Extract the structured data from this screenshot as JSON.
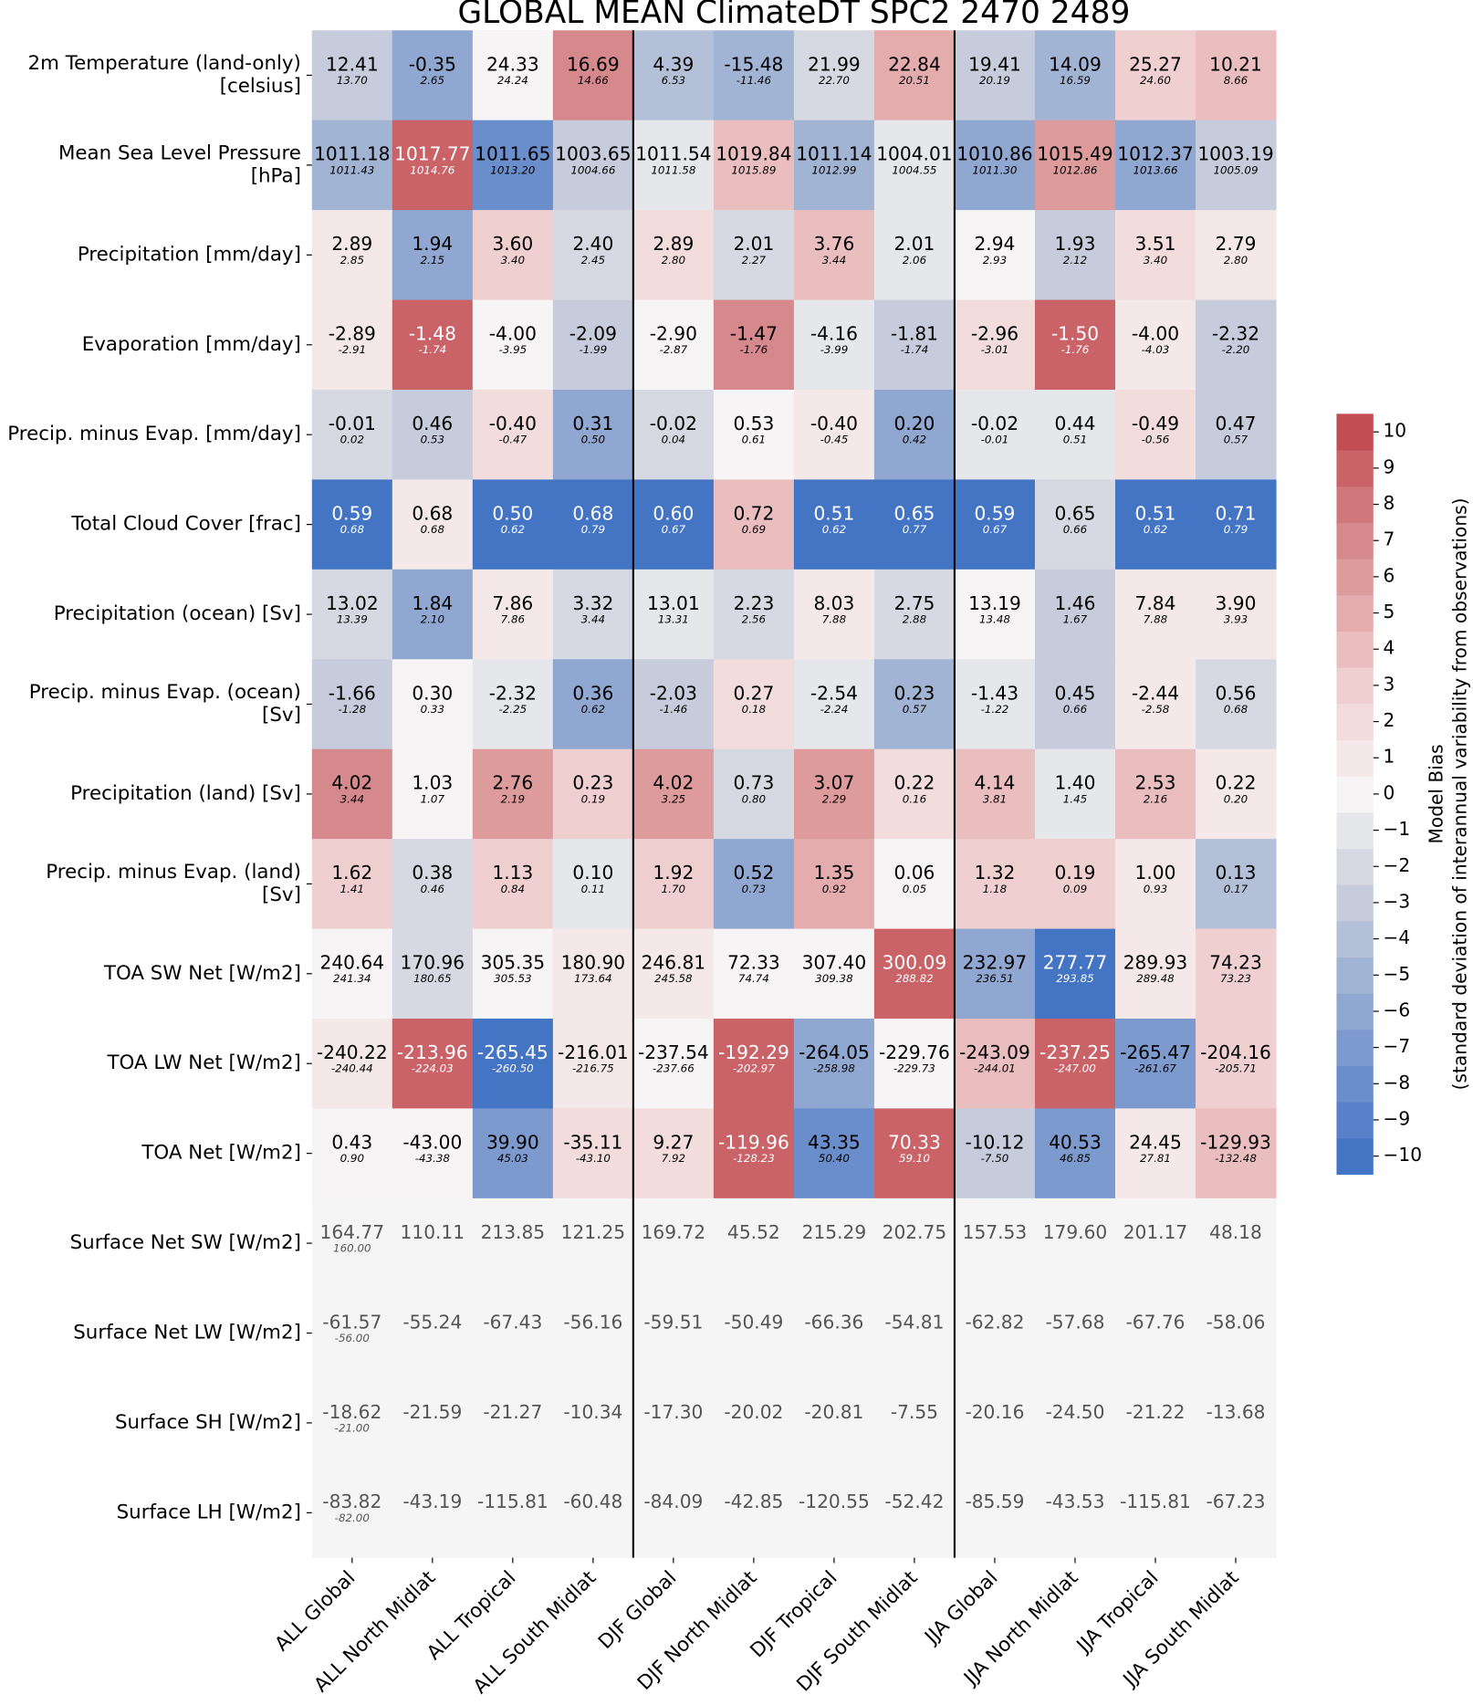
{
  "chart_data": {
    "type": "heatmap",
    "title": "GLOBAL MEAN ClimateDT SPC2 2470 2489",
    "rows": [
      [
        "2m Temperature (land-only)",
        "[celsius]"
      ],
      [
        "Mean Sea Level Pressure",
        "[hPa]"
      ],
      [
        "Precipitation [mm/day]"
      ],
      [
        "Evaporation [mm/day]"
      ],
      [
        "Precip. minus Evap. [mm/day]"
      ],
      [
        "Total Cloud Cover [frac]"
      ],
      [
        "Precipitation (ocean) [Sv]"
      ],
      [
        "Precip. minus Evap. (ocean)",
        "[Sv]"
      ],
      [
        "Precipitation (land) [Sv]"
      ],
      [
        "Precip. minus Evap. (land)",
        "[Sv]"
      ],
      [
        "TOA SW Net [W/m2]"
      ],
      [
        "TOA LW Net [W/m2]"
      ],
      [
        "TOA Net [W/m2]"
      ],
      [
        "Surface Net SW [W/m2]"
      ],
      [
        "Surface Net LW [W/m2]"
      ],
      [
        "Surface SH [W/m2]"
      ],
      [
        "Surface LH [W/m2]"
      ]
    ],
    "columns": [
      "ALL Global",
      "ALL North Midlat",
      "ALL Tropical",
      "ALL South Midlat",
      "DJF Global",
      "DJF North Midlat",
      "DJF Tropical",
      "DJF South Midlat",
      "JJA Global",
      "JJA North Midlat",
      "JJA Tropical",
      "JJA South Midlat"
    ],
    "values": [
      [
        -3,
        -6,
        0,
        7,
        -4,
        -5,
        -2,
        5,
        -3,
        -5,
        3,
        4
      ],
      [
        -5,
        9,
        -8,
        -3,
        -1,
        4,
        -5,
        -1,
        -6,
        6,
        -6,
        -3
      ],
      [
        1,
        -6,
        3,
        -2,
        2,
        -2,
        4,
        -1,
        0,
        -3,
        2,
        1
      ],
      [
        1,
        9,
        0,
        -3,
        0,
        7,
        -1,
        -3,
        2,
        9,
        1,
        -3
      ],
      [
        -2,
        -3,
        2,
        -6,
        -2,
        0,
        1,
        -6,
        -1,
        -1,
        2,
        -3
      ],
      [
        -10,
        1,
        -10,
        -10,
        -10,
        4,
        -10,
        -10,
        -10,
        -2,
        -10,
        -10
      ],
      [
        -2,
        -6,
        1,
        -2,
        -1,
        -2,
        1,
        -2,
        0,
        -3,
        1,
        1
      ],
      [
        -3,
        0,
        -1,
        -6,
        -3,
        2,
        -1,
        -5,
        -1,
        -3,
        1,
        -2
      ],
      [
        7,
        0,
        6,
        3,
        6,
        -2,
        6,
        2,
        4,
        -1,
        4,
        1
      ],
      [
        3,
        -2,
        3,
        -1,
        3,
        -6,
        5,
        0,
        3,
        3,
        1,
        -4
      ],
      [
        0,
        -2,
        0,
        1,
        1,
        0,
        0,
        9,
        -6,
        -10,
        1,
        3
      ],
      [
        1,
        9,
        -10,
        1,
        0,
        9,
        -6,
        0,
        4,
        9,
        -7,
        3
      ],
      [
        0,
        0,
        -7,
        2,
        2,
        9,
        -8,
        9,
        -3,
        -7,
        1,
        4
      ],
      [
        null,
        null,
        null,
        null,
        null,
        null,
        null,
        null,
        null,
        null,
        null,
        null
      ],
      [
        null,
        null,
        null,
        null,
        null,
        null,
        null,
        null,
        null,
        null,
        null,
        null
      ],
      [
        null,
        null,
        null,
        null,
        null,
        null,
        null,
        null,
        null,
        null,
        null,
        null
      ],
      [
        null,
        null,
        null,
        null,
        null,
        null,
        null,
        null,
        null,
        null,
        null,
        null
      ]
    ],
    "cell_text": [
      [
        "12.41",
        "-0.35",
        "24.33",
        "16.69",
        "4.39",
        "-15.48",
        "21.99",
        "22.84",
        "19.41",
        "14.09",
        "25.27",
        "10.21"
      ],
      [
        "1011.18",
        "1017.77",
        "1011.65",
        "1003.65",
        "1011.54",
        "1019.84",
        "1011.14",
        "1004.01",
        "1010.86",
        "1015.49",
        "1012.37",
        "1003.19"
      ],
      [
        "2.89",
        "1.94",
        "3.60",
        "2.40",
        "2.89",
        "2.01",
        "3.76",
        "2.01",
        "2.94",
        "1.93",
        "3.51",
        "2.79"
      ],
      [
        "-2.89",
        "-1.48",
        "-4.00",
        "-2.09",
        "-2.90",
        "-1.47",
        "-4.16",
        "-1.81",
        "-2.96",
        "-1.50",
        "-4.00",
        "-2.32"
      ],
      [
        "-0.01",
        "0.46",
        "-0.40",
        "0.31",
        "-0.02",
        "0.53",
        "-0.40",
        "0.20",
        "-0.02",
        "0.44",
        "-0.49",
        "0.47"
      ],
      [
        "0.59",
        "0.68",
        "0.50",
        "0.68",
        "0.60",
        "0.72",
        "0.51",
        "0.65",
        "0.59",
        "0.65",
        "0.51",
        "0.71"
      ],
      [
        "13.02",
        "1.84",
        "7.86",
        "3.32",
        "13.01",
        "2.23",
        "8.03",
        "2.75",
        "13.19",
        "1.46",
        "7.84",
        "3.90"
      ],
      [
        "-1.66",
        "0.30",
        "-2.32",
        "0.36",
        "-2.03",
        "0.27",
        "-2.54",
        "0.23",
        "-1.43",
        "0.45",
        "-2.44",
        "0.56"
      ],
      [
        "4.02",
        "1.03",
        "2.76",
        "0.23",
        "4.02",
        "0.73",
        "3.07",
        "0.22",
        "4.14",
        "1.40",
        "2.53",
        "0.22"
      ],
      [
        "1.62",
        "0.38",
        "1.13",
        "0.10",
        "1.92",
        "0.52",
        "1.35",
        "0.06",
        "1.32",
        "0.19",
        "1.00",
        "0.13"
      ],
      [
        "240.64",
        "170.96",
        "305.35",
        "180.90",
        "246.81",
        "72.33",
        "307.40",
        "300.09",
        "232.97",
        "277.77",
        "289.93",
        "74.23"
      ],
      [
        "-240.22",
        "-213.96",
        "-265.45",
        "-216.01",
        "-237.54",
        "-192.29",
        "-264.05",
        "-229.76",
        "-243.09",
        "-237.25",
        "-265.47",
        "-204.16"
      ],
      [
        "0.43",
        "-43.00",
        "39.90",
        "-35.11",
        "9.27",
        "-119.96",
        "43.35",
        "70.33",
        "-10.12",
        "40.53",
        "24.45",
        "-129.93"
      ],
      [
        "164.77",
        "110.11",
        "213.85",
        "121.25",
        "169.72",
        "45.52",
        "215.29",
        "202.75",
        "157.53",
        "179.60",
        "201.17",
        "48.18"
      ],
      [
        "-61.57",
        "-55.24",
        "-67.43",
        "-56.16",
        "-59.51",
        "-50.49",
        "-66.36",
        "-54.81",
        "-62.82",
        "-57.68",
        "-67.76",
        "-58.06"
      ],
      [
        "-18.62",
        "-21.59",
        "-21.27",
        "-10.34",
        "-17.30",
        "-20.02",
        "-20.81",
        "-7.55",
        "-20.16",
        "-24.50",
        "-21.22",
        "-13.68"
      ],
      [
        "-83.82",
        "-43.19",
        "-115.81",
        "-60.48",
        "-84.09",
        "-42.85",
        "-120.55",
        "-52.42",
        "-85.59",
        "-43.53",
        "-115.81",
        "-67.23"
      ]
    ],
    "obs_text": [
      [
        "13.70",
        "2.65",
        "24.24",
        "14.66",
        "6.53",
        "-11.46",
        "22.70",
        "20.51",
        "20.19",
        "16.59",
        "24.60",
        "8.66"
      ],
      [
        "1011.43",
        "1014.76",
        "1013.20",
        "1004.66",
        "1011.58",
        "1015.89",
        "1012.99",
        "1004.55",
        "1011.30",
        "1012.86",
        "1013.66",
        "1005.09"
      ],
      [
        "2.85",
        "2.15",
        "3.40",
        "2.45",
        "2.80",
        "2.27",
        "3.44",
        "2.06",
        "2.93",
        "2.12",
        "3.40",
        "2.80"
      ],
      [
        "-2.91",
        "-1.74",
        "-3.95",
        "-1.99",
        "-2.87",
        "-1.76",
        "-3.99",
        "-1.74",
        "-3.01",
        "-1.76",
        "-4.03",
        "-2.20"
      ],
      [
        "0.02",
        "0.53",
        "-0.47",
        "0.50",
        "0.04",
        "0.61",
        "-0.45",
        "0.42",
        "-0.01",
        "0.51",
        "-0.56",
        "0.57"
      ],
      [
        "0.68",
        "0.68",
        "0.62",
        "0.79",
        "0.67",
        "0.69",
        "0.62",
        "0.77",
        "0.67",
        "0.66",
        "0.62",
        "0.79"
      ],
      [
        "13.39",
        "2.10",
        "7.86",
        "3.44",
        "13.31",
        "2.56",
        "7.88",
        "2.88",
        "13.48",
        "1.67",
        "7.88",
        "3.93"
      ],
      [
        "-1.28",
        "0.33",
        "-2.25",
        "0.62",
        "-1.46",
        "0.18",
        "-2.24",
        "0.57",
        "-1.22",
        "0.66",
        "-2.58",
        "0.68"
      ],
      [
        "3.44",
        "1.07",
        "2.19",
        "0.19",
        "3.25",
        "0.80",
        "2.29",
        "0.16",
        "3.81",
        "1.45",
        "2.16",
        "0.20"
      ],
      [
        "1.41",
        "0.46",
        "0.84",
        "0.11",
        "1.70",
        "0.73",
        "0.92",
        "0.05",
        "1.18",
        "0.09",
        "0.93",
        "0.17"
      ],
      [
        "241.34",
        "180.65",
        "305.53",
        "173.64",
        "245.58",
        "74.74",
        "309.38",
        "288.82",
        "236.51",
        "293.85",
        "289.48",
        "73.23"
      ],
      [
        "-240.44",
        "-224.03",
        "-260.50",
        "-216.75",
        "-237.66",
        "-202.97",
        "-258.98",
        "-229.73",
        "-244.01",
        "-247.00",
        "-261.67",
        "-205.71"
      ],
      [
        "0.90",
        "-43.38",
        "45.03",
        "-43.10",
        "7.92",
        "-128.23",
        "50.40",
        "59.10",
        "-7.50",
        "46.85",
        "27.81",
        "-132.48"
      ],
      [
        "160.00",
        null,
        null,
        null,
        null,
        null,
        null,
        null,
        null,
        null,
        null,
        null
      ],
      [
        "-56.00",
        null,
        null,
        null,
        null,
        null,
        null,
        null,
        null,
        null,
        null,
        null
      ],
      [
        "-21.00",
        null,
        null,
        null,
        null,
        null,
        null,
        null,
        null,
        null,
        null,
        null
      ],
      [
        "-82.00",
        null,
        null,
        null,
        null,
        null,
        null,
        null,
        null,
        null,
        null,
        null
      ]
    ],
    "colormap": [
      "#3b6fc4",
      "#6c8fcb",
      "#9db1d3",
      "#cdd1dc",
      "#f6f4f4",
      "#f1d5d5",
      "#e3a8a9",
      "#d07a7d",
      "#bf444a"
    ],
    "nan_color": "#f5f5f5",
    "clim": [
      -10.5,
      10.5
    ],
    "colorbar_ticks": [
      {
        "value": 10,
        "label": "10"
      },
      {
        "value": 9,
        "label": "9"
      },
      {
        "value": 8,
        "label": "8"
      },
      {
        "value": 7,
        "label": "7"
      },
      {
        "value": 6,
        "label": "6"
      },
      {
        "value": 5,
        "label": "5"
      },
      {
        "value": 4,
        "label": "4"
      },
      {
        "value": 3,
        "label": "3"
      },
      {
        "value": 2,
        "label": "2"
      },
      {
        "value": 1,
        "label": "1"
      },
      {
        "value": 0,
        "label": "0"
      },
      {
        "value": -1,
        "label": "−1"
      },
      {
        "value": -2,
        "label": "−2"
      },
      {
        "value": -3,
        "label": "−3"
      },
      {
        "value": -4,
        "label": "−4"
      },
      {
        "value": -5,
        "label": "−5"
      },
      {
        "value": -6,
        "label": "−6"
      },
      {
        "value": -7,
        "label": "−7"
      },
      {
        "value": -8,
        "label": "−8"
      },
      {
        "value": -9,
        "label": "−9"
      },
      {
        "value": -10,
        "label": "−10"
      }
    ],
    "colorbar_label": [
      "Model Bias",
      "(standard deviation of interannual variability from observations)"
    ]
  }
}
